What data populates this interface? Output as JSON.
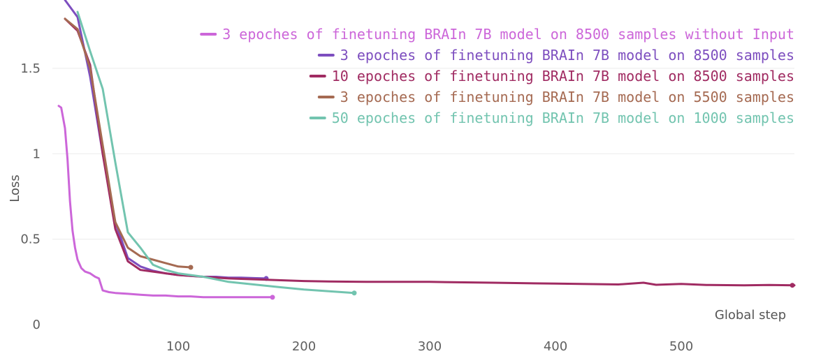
{
  "chart_data": {
    "type": "line",
    "xlabel": "Global step",
    "ylabel": "Loss",
    "xlim": [
      0,
      590
    ],
    "ylim": [
      0,
      1.9
    ],
    "x_ticks": [
      {
        "value": 100,
        "label": "100"
      },
      {
        "value": 200,
        "label": "200"
      },
      {
        "value": 300,
        "label": "300"
      },
      {
        "value": 400,
        "label": "400"
      },
      {
        "value": 500,
        "label": "500"
      }
    ],
    "y_ticks": [
      {
        "value": 0,
        "label": "0"
      },
      {
        "value": 0.5,
        "label": "0.5"
      },
      {
        "value": 1,
        "label": "1"
      },
      {
        "value": 1.5,
        "label": "1.5"
      }
    ],
    "grid": "horizontal",
    "legend_position": "top-right",
    "series": [
      {
        "name": "3 epoches of finetuning BRAIn 7B model on 8500 samples without Input",
        "color": "#cc66d9",
        "x": [
          5,
          7,
          10,
          12,
          14,
          16,
          18,
          20,
          23,
          26,
          30,
          34,
          37,
          40,
          45,
          50,
          60,
          70,
          80,
          90,
          100,
          110,
          120,
          130,
          140,
          150,
          160,
          170,
          175
        ],
        "y": [
          1.28,
          1.27,
          1.15,
          0.97,
          0.72,
          0.55,
          0.45,
          0.38,
          0.33,
          0.31,
          0.3,
          0.28,
          0.27,
          0.2,
          0.19,
          0.185,
          0.18,
          0.175,
          0.17,
          0.17,
          0.165,
          0.165,
          0.16,
          0.16,
          0.16,
          0.16,
          0.16,
          0.16,
          0.16
        ]
      },
      {
        "name": "3 epoches of finetuning BRAIn 7B model on 8500 samples",
        "color": "#7d4ebf",
        "x": [
          10,
          20,
          30,
          40,
          50,
          60,
          70,
          80,
          90,
          100,
          110,
          120,
          130,
          140,
          150,
          160,
          170
        ],
        "y": [
          1.9,
          1.8,
          1.45,
          1.0,
          0.6,
          0.39,
          0.34,
          0.315,
          0.3,
          0.29,
          0.285,
          0.28,
          0.28,
          0.275,
          0.275,
          0.272,
          0.27
        ]
      },
      {
        "name": "10 epoches of finetuning BRAIn 7B model on 8500 samples",
        "color": "#a02b62",
        "x": [
          10,
          20,
          30,
          40,
          50,
          60,
          70,
          80,
          100,
          120,
          140,
          160,
          180,
          200,
          220,
          250,
          300,
          350,
          400,
          450,
          470,
          480,
          500,
          520,
          550,
          570,
          590
        ],
        "y": [
          1.79,
          1.72,
          1.52,
          1.0,
          0.56,
          0.37,
          0.32,
          0.31,
          0.29,
          0.28,
          0.27,
          0.265,
          0.26,
          0.255,
          0.252,
          0.25,
          0.25,
          0.245,
          0.24,
          0.235,
          0.245,
          0.233,
          0.238,
          0.232,
          0.23,
          0.232,
          0.23
        ]
      },
      {
        "name": "3 epoches of finetuning BRAIn 7B model on 5500 samples",
        "color": "#a56a52",
        "x": [
          10,
          20,
          30,
          40,
          50,
          60,
          70,
          80,
          90,
          100,
          110
        ],
        "y": [
          1.79,
          1.73,
          1.5,
          1.05,
          0.6,
          0.45,
          0.4,
          0.38,
          0.36,
          0.34,
          0.335
        ]
      },
      {
        "name": "50 epoches of finetuning BRAIn 7B model on 1000 samples",
        "color": "#72c4af",
        "x": [
          20,
          30,
          40,
          50,
          60,
          70,
          80,
          90,
          100,
          120,
          140,
          160,
          180,
          200,
          220,
          240
        ],
        "y": [
          1.83,
          1.6,
          1.38,
          0.95,
          0.54,
          0.45,
          0.35,
          0.32,
          0.3,
          0.28,
          0.25,
          0.235,
          0.22,
          0.205,
          0.195,
          0.185
        ]
      }
    ]
  }
}
